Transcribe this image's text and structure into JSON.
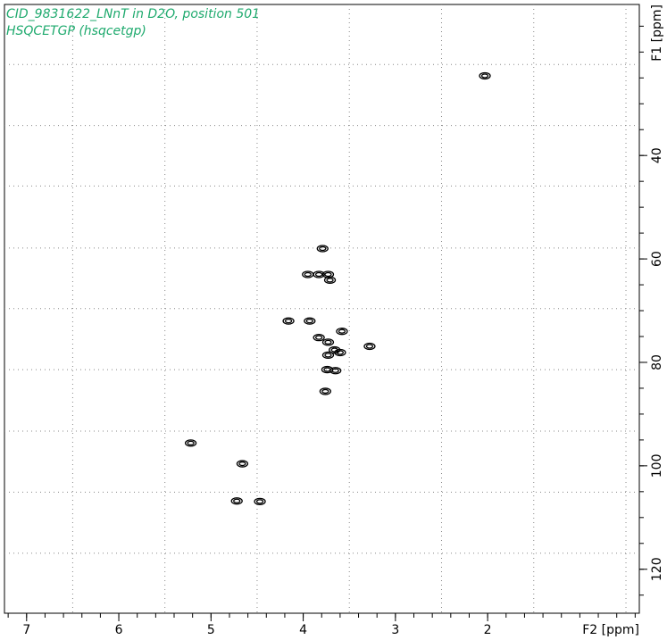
{
  "chart_data": {
    "type": "contour",
    "title": "CID_9831622_LNnT in D2O, position 501",
    "subtitle": "HSQCETGP (hsqcetgp)",
    "x_label": "F2 [ppm]",
    "y_label": "F1 [ppm]",
    "xlim": [
      7.24,
      0.355
    ],
    "ylim": [
      10.8,
      128.5
    ],
    "xticks": [
      7,
      6,
      5,
      4,
      3,
      2
    ],
    "yticks": [
      40,
      60,
      80,
      100,
      120
    ],
    "xminorticks": [
      7.2,
      7.0,
      6.8,
      6.6,
      6.4,
      6.2,
      6.0,
      5.8,
      5.6,
      5.4,
      5.2,
      5.0,
      4.8,
      4.6,
      4.4,
      4.2,
      4.0,
      3.8,
      3.6,
      3.4,
      3.2,
      3.0,
      2.8,
      2.6,
      2.4,
      2.2,
      2.0,
      1.8,
      1.6,
      1.4,
      1.2,
      1.0,
      0.8,
      0.6,
      0.4
    ],
    "yminorticks": [
      15,
      20,
      25,
      30,
      35,
      40,
      45,
      50,
      55,
      60,
      65,
      70,
      75,
      80,
      85,
      90,
      95,
      100,
      105,
      110,
      115,
      120,
      125
    ],
    "xgrid": [
      6.5,
      5.5,
      4.5,
      3.5,
      2.5,
      1.5,
      0.5
    ],
    "ygrid": [
      22.4,
      34.2,
      45.9,
      57.9,
      69.6,
      81.4,
      93.3,
      105.1,
      116.9
    ],
    "color": "#000000",
    "x": [
      2.03,
      3.79,
      3.95,
      3.83,
      3.73,
      3.71,
      4.16,
      3.93,
      3.83,
      3.58,
      3.73,
      3.66,
      3.6,
      3.28,
      3.73,
      3.74,
      3.65,
      3.76,
      5.22,
      4.66,
      4.72,
      4.47
    ],
    "y": [
      24.6,
      58.0,
      63.0,
      63.0,
      63.0,
      64.1,
      72.0,
      72.0,
      75.2,
      74.0,
      76.1,
      77.6,
      78.1,
      76.9,
      78.6,
      81.4,
      81.6,
      85.6,
      95.6,
      99.6,
      106.8,
      106.9
    ]
  }
}
